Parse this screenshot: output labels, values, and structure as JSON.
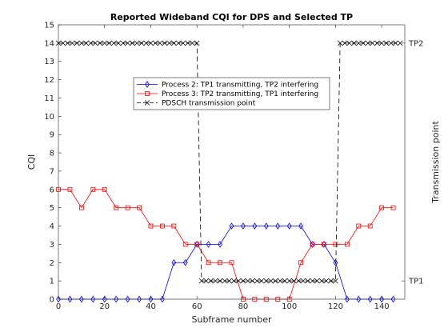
{
  "chart_data": {
    "type": "line",
    "title": "Reported Wideband CQI for DPS and Selected TP",
    "xlabel": "Subframe number",
    "ylabel": "CQI",
    "y2label": "Transmission point",
    "xlim": [
      0,
      150
    ],
    "ylim": [
      0,
      15
    ],
    "xticks": [
      0,
      20,
      40,
      60,
      80,
      100,
      120,
      140
    ],
    "yticks": [
      0,
      1,
      2,
      3,
      4,
      5,
      6,
      7,
      8,
      9,
      10,
      11,
      12,
      13,
      14,
      15
    ],
    "y2_ticklabels": [
      {
        "label": "TP2",
        "y": 14
      },
      {
        "label": "TP1",
        "y": 1
      }
    ],
    "legend_position": "upper-center",
    "series": [
      {
        "name": "Process 2: TP1 transmitting, TP2 interfering",
        "color": "#0000ff",
        "marker": "diamond",
        "style": "solid",
        "x": [
          0,
          5,
          10,
          15,
          20,
          25,
          30,
          35,
          40,
          45,
          50,
          55,
          60,
          65,
          70,
          75,
          80,
          85,
          90,
          95,
          100,
          105,
          110,
          115,
          120,
          125,
          130,
          135,
          140,
          145
        ],
        "y": [
          0,
          0,
          0,
          0,
          0,
          0,
          0,
          0,
          0,
          0,
          2,
          2,
          3,
          3,
          3,
          4,
          4,
          4,
          4,
          4,
          4,
          4,
          3,
          3,
          2,
          0,
          0,
          0,
          0,
          0
        ]
      },
      {
        "name": "Process 3: TP2 transmitting, TP1 interfering",
        "color": "#ff0000",
        "marker": "square",
        "style": "solid",
        "x": [
          0,
          5,
          10,
          15,
          20,
          25,
          30,
          35,
          40,
          45,
          50,
          55,
          60,
          65,
          70,
          75,
          80,
          85,
          90,
          95,
          100,
          105,
          110,
          115,
          120,
          125,
          130,
          135,
          140,
          145
        ],
        "y": [
          6,
          6,
          5,
          6,
          6,
          5,
          5,
          5,
          4,
          4,
          4,
          3,
          3,
          2,
          2,
          2,
          0,
          0,
          0,
          0,
          0,
          2,
          3,
          3,
          3,
          3,
          4,
          4,
          5,
          5
        ]
      },
      {
        "name": "PDSCH transmission point",
        "color": "#000000",
        "marker": "x",
        "style": "dashed",
        "x": [
          0,
          2,
          4,
          6,
          8,
          10,
          12,
          14,
          16,
          18,
          20,
          22,
          24,
          26,
          28,
          30,
          32,
          34,
          36,
          38,
          40,
          42,
          44,
          46,
          48,
          50,
          52,
          54,
          56,
          58,
          60,
          62,
          64,
          66,
          68,
          70,
          72,
          74,
          76,
          78,
          80,
          82,
          84,
          86,
          88,
          90,
          92,
          94,
          96,
          98,
          100,
          102,
          104,
          106,
          108,
          110,
          112,
          114,
          116,
          118,
          120,
          122,
          124,
          126,
          128,
          130,
          132,
          134,
          136,
          138,
          140,
          142,
          144,
          146,
          148
        ],
        "y": [
          14,
          14,
          14,
          14,
          14,
          14,
          14,
          14,
          14,
          14,
          14,
          14,
          14,
          14,
          14,
          14,
          14,
          14,
          14,
          14,
          14,
          14,
          14,
          14,
          14,
          14,
          14,
          14,
          14,
          14,
          14,
          1,
          1,
          1,
          1,
          1,
          1,
          1,
          1,
          1,
          1,
          1,
          1,
          1,
          1,
          1,
          1,
          1,
          1,
          1,
          1,
          1,
          1,
          1,
          1,
          1,
          1,
          1,
          1,
          1,
          1,
          14,
          14,
          14,
          14,
          14,
          14,
          14,
          14,
          14,
          14,
          14,
          14,
          14,
          14
        ]
      }
    ]
  }
}
